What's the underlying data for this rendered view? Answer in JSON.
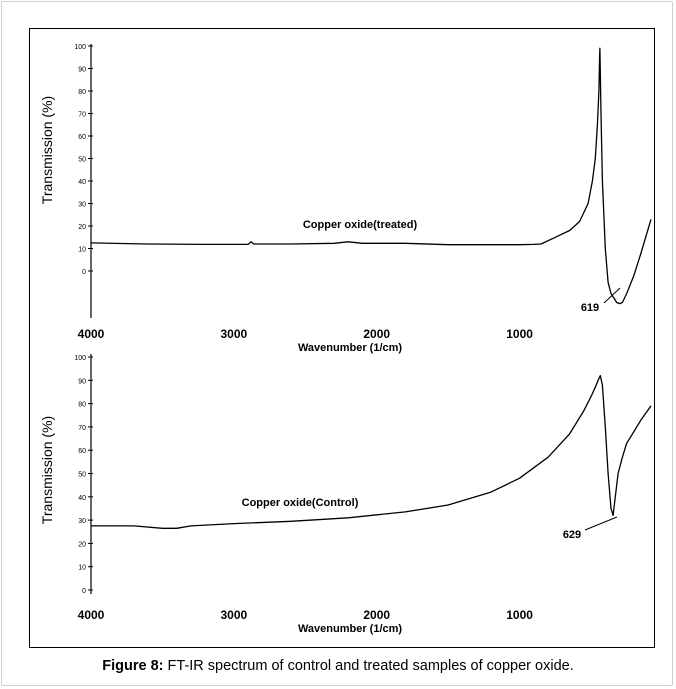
{
  "caption": {
    "label": "Figure 8:",
    "text": " FT-IR spectrum of control and treated samples of copper oxide."
  },
  "chart_data": [
    {
      "type": "line",
      "title": "",
      "xlabel": "Wavenumber (1/cm)",
      "ylabel": "Transmission (%)",
      "xlim": [
        4000,
        80
      ],
      "ylim": [
        -20,
        100
      ],
      "x_ticks": [
        "4000",
        "3000",
        "2000",
        "1000"
      ],
      "x_tick_values": [
        4000,
        3000,
        2000,
        1000
      ],
      "y_ticks": [
        "100",
        "90",
        "80",
        "70",
        "60",
        "50",
        "40",
        "30",
        "20",
        "10",
        "0"
      ],
      "y_tick_values": [
        100,
        90,
        80,
        70,
        60,
        50,
        40,
        30,
        20,
        10,
        0
      ],
      "series": [
        {
          "name": "Copper oxide(treated)",
          "x": [
            4000,
            3600,
            3200,
            2900,
            2880,
            2860,
            2600,
            2300,
            2200,
            2100,
            1800,
            1500,
            1200,
            1000,
            900,
            850,
            750,
            650,
            580,
            520,
            490,
            470,
            455,
            445,
            440,
            438,
            430,
            420,
            400,
            380,
            360,
            340,
            320,
            300,
            280,
            250,
            200,
            150,
            80
          ],
          "y": [
            12.5,
            12,
            11.8,
            11.8,
            13,
            12,
            12,
            12.3,
            13,
            12.3,
            12.3,
            11.7,
            11.7,
            11.7,
            11.8,
            12,
            15,
            18,
            22,
            30,
            40,
            50,
            65,
            80,
            95,
            99,
            70,
            40,
            10,
            -5,
            -10,
            -12,
            -14,
            -14.5,
            -14,
            -10,
            -2,
            8,
            23
          ]
        }
      ],
      "annotations": [
        {
          "label": "619",
          "x": 619,
          "y": -14
        }
      ]
    },
    {
      "type": "line",
      "title": "",
      "xlabel": "Wavenumber (1/cm)",
      "ylabel": "Transmission (%)",
      "xlim": [
        4000,
        80
      ],
      "ylim": [
        0,
        100
      ],
      "x_ticks": [
        "4000",
        "3000",
        "2000",
        "1000"
      ],
      "x_tick_values": [
        4000,
        3000,
        2000,
        1000
      ],
      "y_ticks": [
        "100",
        "90",
        "80",
        "70",
        "60",
        "50",
        "40",
        "30",
        "20",
        "10",
        "0"
      ],
      "y_tick_values": [
        100,
        90,
        80,
        70,
        60,
        50,
        40,
        30,
        20,
        10,
        0
      ],
      "series": [
        {
          "name": "Copper oxide(Control)",
          "x": [
            4000,
            3700,
            3500,
            3400,
            3300,
            3000,
            2600,
            2200,
            1800,
            1500,
            1200,
            1000,
            800,
            650,
            550,
            500,
            470,
            450,
            435,
            420,
            400,
            380,
            360,
            345,
            330,
            310,
            280,
            250,
            200,
            150,
            80
          ],
          "y": [
            27.5,
            27.5,
            26.5,
            26.5,
            27.5,
            28.5,
            29.5,
            31,
            33.5,
            36.5,
            42,
            48,
            57,
            67,
            77,
            83,
            87,
            90,
            92,
            88,
            70,
            50,
            35,
            32,
            40,
            50,
            57,
            63,
            68,
            73,
            79
          ]
        }
      ],
      "annotations": [
        {
          "label": "629",
          "x": 629,
          "y": 32
        }
      ]
    }
  ]
}
